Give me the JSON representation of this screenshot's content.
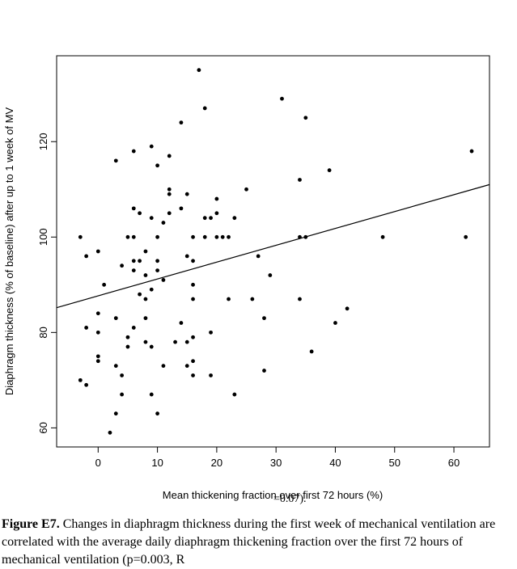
{
  "chart_data": {
    "type": "scatter",
    "title": "",
    "xlabel": "Mean thickening fraction over first 72 hours (%)",
    "ylabel": "Diaphragm thickness (% of baseline) after up to 1 week of MV",
    "xlim": [
      -7,
      66
    ],
    "ylim": [
      56,
      138
    ],
    "xticks": [
      0,
      10,
      20,
      30,
      40,
      50,
      60
    ],
    "yticks": [
      60,
      80,
      100,
      120
    ],
    "grid": false,
    "legend": "none",
    "points": [
      [
        -3,
        100
      ],
      [
        -3,
        70
      ],
      [
        -2,
        96
      ],
      [
        -2,
        81
      ],
      [
        -2,
        69
      ],
      [
        0,
        97
      ],
      [
        0,
        84
      ],
      [
        0,
        80
      ],
      [
        0,
        75
      ],
      [
        0,
        74
      ],
      [
        1,
        90
      ],
      [
        2,
        59
      ],
      [
        3,
        116
      ],
      [
        3,
        83
      ],
      [
        3,
        73
      ],
      [
        3,
        63
      ],
      [
        4,
        94
      ],
      [
        4,
        71
      ],
      [
        4,
        67
      ],
      [
        5,
        100
      ],
      [
        5,
        79
      ],
      [
        5,
        77
      ],
      [
        6,
        118
      ],
      [
        6,
        106
      ],
      [
        6,
        100
      ],
      [
        6,
        95
      ],
      [
        6,
        93
      ],
      [
        6,
        81
      ],
      [
        7,
        105
      ],
      [
        7,
        95
      ],
      [
        7,
        88
      ],
      [
        8,
        97
      ],
      [
        8,
        92
      ],
      [
        8,
        87
      ],
      [
        8,
        83
      ],
      [
        8,
        78
      ],
      [
        9,
        119
      ],
      [
        9,
        104
      ],
      [
        9,
        89
      ],
      [
        9,
        77
      ],
      [
        9,
        67
      ],
      [
        10,
        115
      ],
      [
        10,
        100
      ],
      [
        10,
        95
      ],
      [
        10,
        93
      ],
      [
        10,
        63
      ],
      [
        11,
        103
      ],
      [
        11,
        91
      ],
      [
        11,
        73
      ],
      [
        12,
        117
      ],
      [
        12,
        109
      ],
      [
        12,
        110
      ],
      [
        12,
        105
      ],
      [
        13,
        78
      ],
      [
        14,
        124
      ],
      [
        14,
        106
      ],
      [
        14,
        82
      ],
      [
        15,
        109
      ],
      [
        15,
        96
      ],
      [
        15,
        78
      ],
      [
        15,
        73
      ],
      [
        16,
        100
      ],
      [
        16,
        95
      ],
      [
        16,
        90
      ],
      [
        16,
        87
      ],
      [
        16,
        79
      ],
      [
        16,
        74
      ],
      [
        16,
        71
      ],
      [
        17,
        135
      ],
      [
        18,
        127
      ],
      [
        18,
        104
      ],
      [
        18,
        100
      ],
      [
        19,
        104
      ],
      [
        19,
        80
      ],
      [
        19,
        71
      ],
      [
        20,
        108
      ],
      [
        20,
        105
      ],
      [
        20,
        100
      ],
      [
        21,
        100
      ],
      [
        22,
        100
      ],
      [
        22,
        87
      ],
      [
        23,
        104
      ],
      [
        23,
        67
      ],
      [
        25,
        110
      ],
      [
        26,
        87
      ],
      [
        27,
        96
      ],
      [
        28,
        83
      ],
      [
        28,
        72
      ],
      [
        29,
        92
      ],
      [
        31,
        129
      ],
      [
        34,
        112
      ],
      [
        34,
        100
      ],
      [
        34,
        87
      ],
      [
        35,
        125
      ],
      [
        35,
        100
      ],
      [
        36,
        76
      ],
      [
        39,
        114
      ],
      [
        40,
        82
      ],
      [
        42,
        85
      ],
      [
        48,
        100
      ],
      [
        62,
        100
      ],
      [
        63,
        118
      ]
    ],
    "regression_line": {
      "x": [
        -7,
        66
      ],
      "y": [
        85.2,
        111.0
      ]
    }
  },
  "caption": {
    "figure_label": "Figure E7.",
    "text": "Changes in diaphragm thickness during the first week of mechanical ventilation are correlated with the average daily diaphragm thickening fraction over the first 72 hours of mechanical ventilation (p=0.003, R",
    "overlap_fragment": "=0.07)."
  }
}
